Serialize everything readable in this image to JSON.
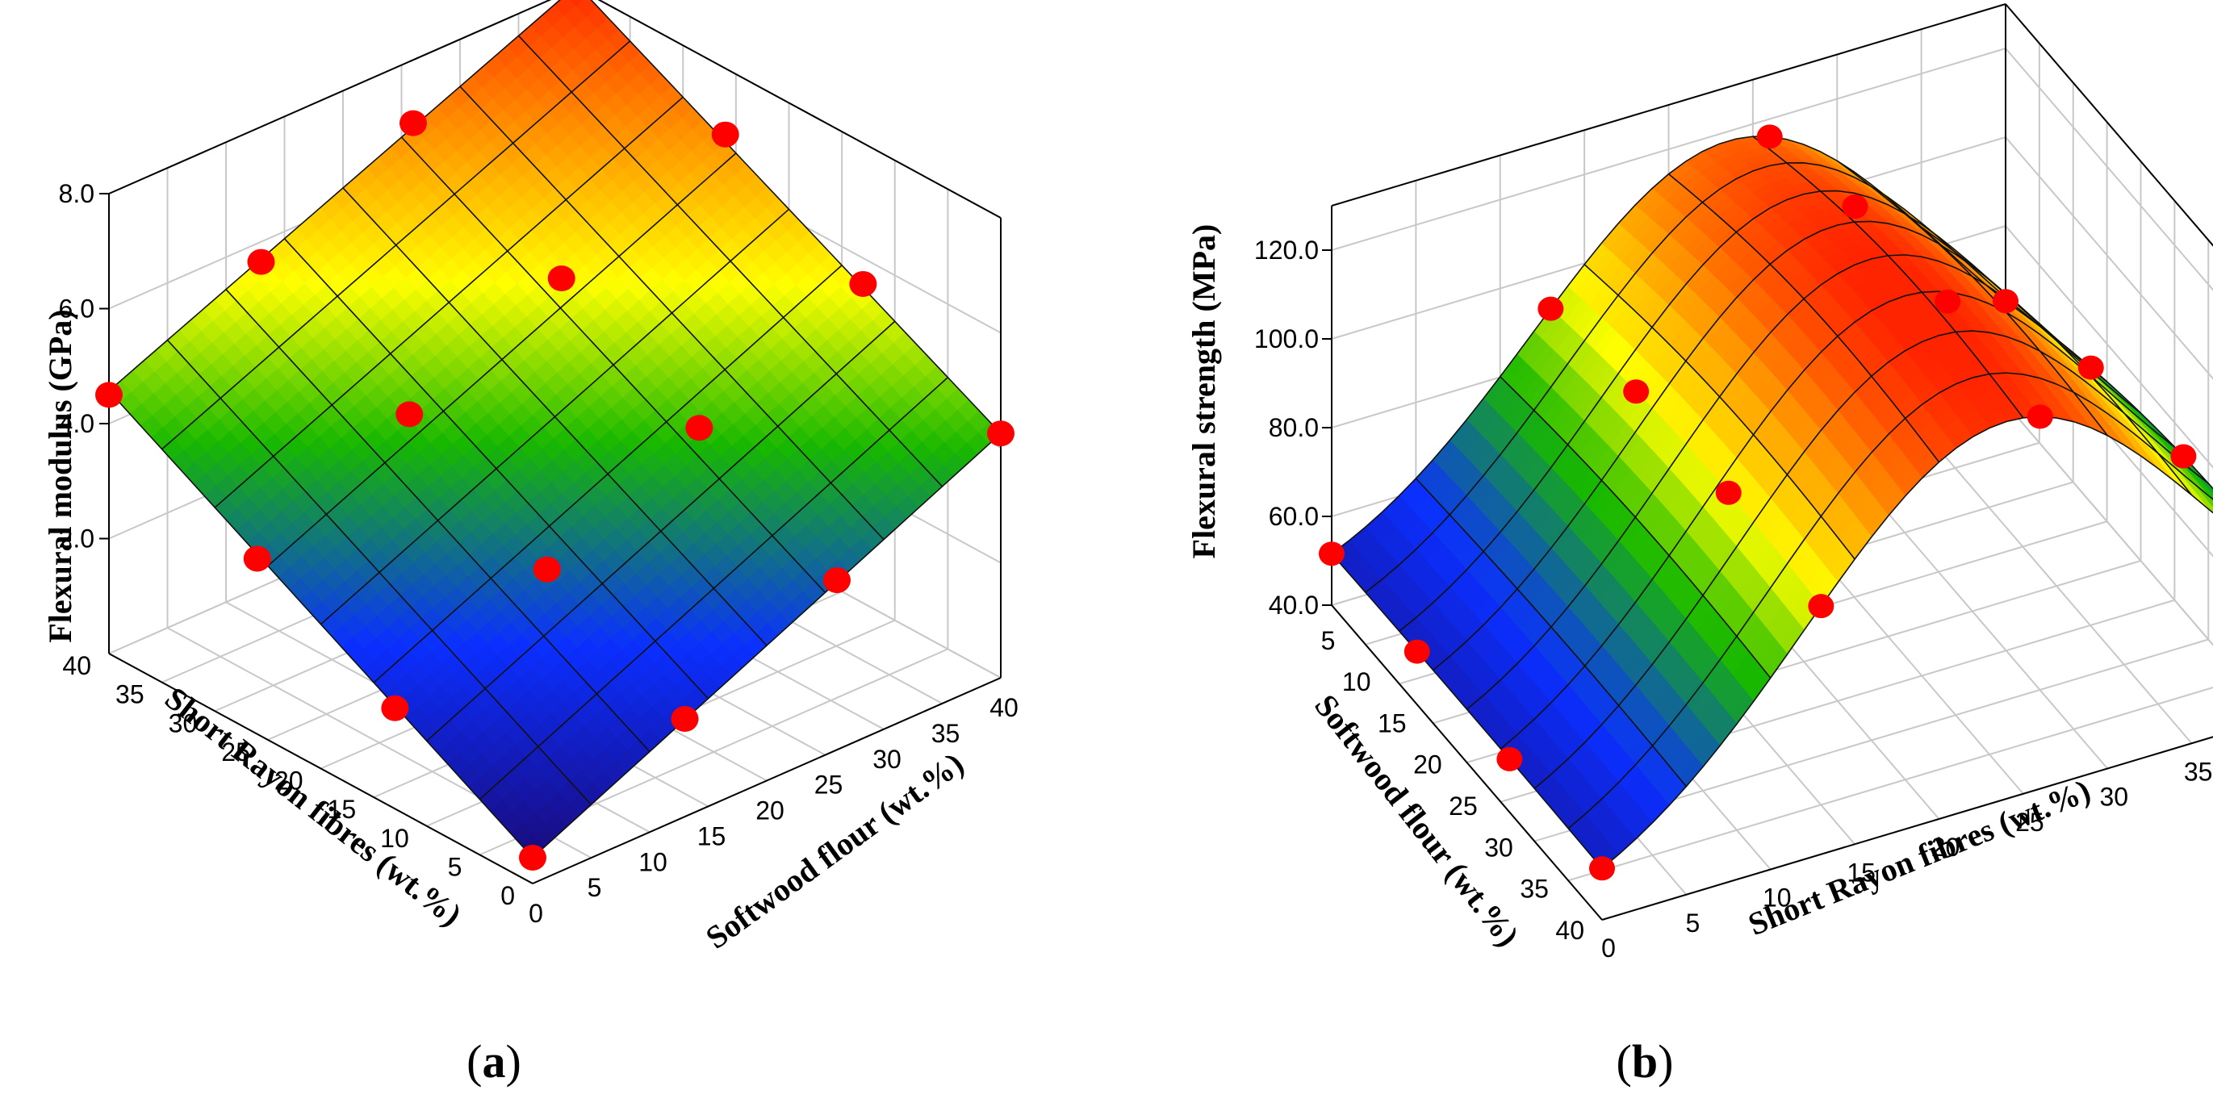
{
  "colors": {
    "low": "#1a0a7a",
    "mid_blue": "#0b2fff",
    "green": "#18b800",
    "yellow": "#ffff00",
    "orange": "#ff8c00",
    "high": "#ff2400",
    "point": "#ff0000",
    "grid": "#c8c8c8"
  },
  "chart_data": [
    {
      "panel_label": "a",
      "type": "surface",
      "zlabel": "Flexural modulus (GPa)",
      "xlabel": "Softwood flour (wt.%)",
      "ylabel": "Short Rayon fibres (wt.%)",
      "x_ticks": [
        "0",
        "5",
        "10",
        "15",
        "20",
        "25",
        "30",
        "35",
        "40"
      ],
      "y_ticks": [
        "0",
        "5",
        "10",
        "15",
        "20",
        "25",
        "30",
        "35",
        "40"
      ],
      "z_ticks": [
        "2.0",
        "4.0",
        "6.0",
        "8.0"
      ],
      "xlim": [
        0,
        40
      ],
      "ylim": [
        0,
        40
      ],
      "zlim": [
        0,
        8
      ],
      "surface_model": {
        "intercept": 0.45,
        "x_coef": 0.095,
        "y_coef": 0.103,
        "xy_coef": -0.0002
      },
      "points": [
        {
          "x": 0,
          "y": 0,
          "z": 0.45
        },
        {
          "x": 0,
          "y": 13,
          "z": 1.75
        },
        {
          "x": 0,
          "y": 26,
          "z": 3.05
        },
        {
          "x": 0,
          "y": 40,
          "z": 4.5
        },
        {
          "x": 13,
          "y": 0,
          "z": 1.7
        },
        {
          "x": 13,
          "y": 13,
          "z": 3.0
        },
        {
          "x": 13,
          "y": 26,
          "z": 4.4
        },
        {
          "x": 13,
          "y": 40,
          "z": 5.65
        },
        {
          "x": 26,
          "y": 0,
          "z": 2.95
        },
        {
          "x": 26,
          "y": 13,
          "z": 4.3
        },
        {
          "x": 26,
          "y": 26,
          "z": 5.6
        },
        {
          "x": 26,
          "y": 40,
          "z": 6.9
        },
        {
          "x": 40,
          "y": 0,
          "z": 4.25
        },
        {
          "x": 40,
          "y": 13,
          "z": 5.55
        },
        {
          "x": 40,
          "y": 26,
          "z": 6.85
        },
        {
          "x": 40,
          "y": 40,
          "z": 8.1
        }
      ]
    },
    {
      "panel_label": "b",
      "type": "surface",
      "zlabel": "Flexural strength (MPa)",
      "xlabel": "Short Rayon fibres (wt.%)",
      "ylabel": "Softwood flour (wt.%)",
      "x_ticks": [
        "0",
        "5",
        "10",
        "15",
        "20",
        "25",
        "30",
        "35",
        "40"
      ],
      "y_ticks": [
        "5",
        "10",
        "15",
        "20",
        "25",
        "30",
        "35",
        "40"
      ],
      "z_ticks": [
        "40.0",
        "60.0",
        "80.0",
        "100.0",
        "120.0"
      ],
      "xlim": [
        0,
        40
      ],
      "ylim": [
        2,
        40
      ],
      "zlim": [
        40,
        130
      ],
      "surface_model": {
        "base": 40,
        "peak": 125,
        "peak_x": 24,
        "width_x": 17,
        "edge_drop": 12
      },
      "points": [
        {
          "x": 0,
          "y": 2,
          "z": 42
        },
        {
          "x": 0,
          "y": 15,
          "z": 48
        },
        {
          "x": 0,
          "y": 28,
          "z": 45
        },
        {
          "x": 0,
          "y": 40,
          "z": 42
        },
        {
          "x": 13,
          "y": 2,
          "z": 66
        },
        {
          "x": 13,
          "y": 15,
          "z": 80
        },
        {
          "x": 13,
          "y": 28,
          "z": 78
        },
        {
          "x": 13,
          "y": 40,
          "z": 70
        },
        {
          "x": 26,
          "y": 2,
          "z": 116
        },
        {
          "x": 26,
          "y": 15,
          "z": 122
        },
        {
          "x": 26,
          "y": 28,
          "z": 118
        },
        {
          "x": 26,
          "y": 40,
          "z": 96
        },
        {
          "x": 40,
          "y": 2,
          "z": 60
        },
        {
          "x": 40,
          "y": 15,
          "z": 75
        },
        {
          "x": 40,
          "y": 28,
          "z": 88
        },
        {
          "x": 40,
          "y": 40,
          "z": 58
        }
      ]
    }
  ]
}
